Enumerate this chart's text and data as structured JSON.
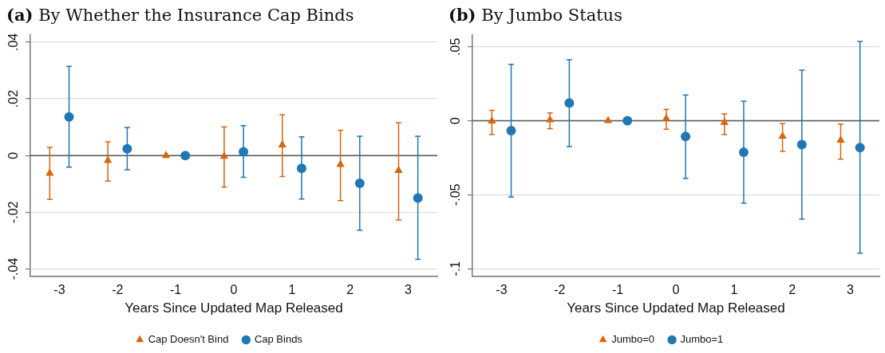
{
  "chart_data": [
    {
      "type": "scatter",
      "title": "(a) By Whether the Insurance Cap Binds",
      "xlabel": "Years Since Updated Map Released",
      "xlim": [
        -3.5,
        3.5
      ],
      "xticks": [
        -3,
        -2,
        -1,
        0,
        1,
        2,
        3
      ],
      "ylim": [
        -0.0425,
        0.0425
      ],
      "yticks": [
        {
          "value": -0.04,
          "label": "-.04"
        },
        {
          "value": -0.02,
          "label": "-.02"
        },
        0,
        {
          "value": 0.02,
          "label": ".02"
        },
        {
          "value": 0.04,
          "label": ".04"
        }
      ],
      "grid": "y",
      "legend": "bottom",
      "ref_lines": [
        {
          "axis": "y",
          "value": 0,
          "color": "#555555"
        }
      ],
      "series": [
        {
          "name": "Cap Doesn't Bind",
          "color": "#d9650c",
          "marker": "triangle",
          "x": [
            -3.166,
            -2.166,
            -1.166,
            -0.166,
            0.834,
            1.834,
            2.834
          ],
          "values": [
            -0.0063,
            -0.0018,
            0,
            -0.0003,
            0.0037,
            -0.0032,
            -0.0053
          ],
          "errors": [
            [
              -0.0155,
              0.0029
            ],
            [
              -0.009,
              0.0048
            ],
            null,
            [
              -0.0111,
              0.0101
            ],
            [
              -0.0074,
              0.0144
            ],
            [
              -0.0159,
              0.0089
            ],
            [
              -0.0227,
              0.0116
            ]
          ]
        },
        {
          "name": "Cap Binds",
          "color": "#1f77b4",
          "marker": "circle",
          "x": [
            -2.834,
            -1.834,
            -0.834,
            0.166,
            1.166,
            2.166,
            3.166
          ],
          "values": [
            0.0136,
            0.0024,
            0,
            0.0013,
            -0.0045,
            -0.0098,
            -0.015
          ],
          "errors": [
            [
              -0.0041,
              0.0315
            ],
            [
              -0.005,
              0.0099
            ],
            null,
            [
              -0.0077,
              0.0105
            ],
            [
              -0.0153,
              0.0066
            ],
            [
              -0.0264,
              0.0068
            ],
            [
              -0.0366,
              0.0068
            ]
          ]
        }
      ]
    },
    {
      "type": "scatter",
      "title": "(b) By Jumbo Status",
      "xlabel": "Years Since Updated Map Released",
      "xlim": [
        -3.5,
        3.5
      ],
      "xticks": [
        -3,
        -2,
        -1,
        0,
        1,
        2,
        3
      ],
      "ylim": [
        -0.105,
        0.058
      ],
      "yticks": [
        {
          "value": -0.1,
          "label": "-.1"
        },
        {
          "value": -0.05,
          "label": "-.05"
        },
        0,
        {
          "value": 0.05,
          "label": ".05"
        }
      ],
      "grid": "y",
      "legend": "bottom",
      "ref_lines": [
        {
          "axis": "y",
          "value": 0,
          "color": "#555555"
        }
      ],
      "series": [
        {
          "name": "Jumbo=0",
          "color": "#d9650c",
          "marker": "triangle",
          "x": [
            -3.166,
            -2.166,
            -1.166,
            -0.166,
            0.834,
            1.834,
            2.834
          ],
          "values": [
            -0.0002,
            0.0006,
            0,
            0.0016,
            -0.0012,
            -0.0104,
            -0.0132
          ],
          "errors": [
            [
              -0.0093,
              0.0071
            ],
            [
              -0.0053,
              0.0053
            ],
            null,
            [
              -0.0057,
              0.0077
            ],
            [
              -0.0093,
              0.0047
            ],
            [
              -0.0207,
              -0.0018
            ],
            [
              -0.026,
              -0.0022
            ]
          ]
        },
        {
          "name": "Jumbo=1",
          "color": "#1f77b4",
          "marker": "circle",
          "x": [
            -2.834,
            -1.834,
            -0.834,
            0.166,
            1.166,
            2.166,
            3.166
          ],
          "values": [
            -0.0067,
            0.012,
            0,
            -0.0106,
            -0.0213,
            -0.0161,
            -0.0181
          ],
          "errors": [
            [
              -0.0516,
              0.0382
            ],
            [
              -0.0175,
              0.0413
            ],
            null,
            [
              -0.039,
              0.0175
            ],
            [
              -0.0557,
              0.0132
            ],
            [
              -0.0665,
              0.0343
            ],
            [
              -0.0896,
              0.0537
            ]
          ]
        }
      ]
    }
  ]
}
